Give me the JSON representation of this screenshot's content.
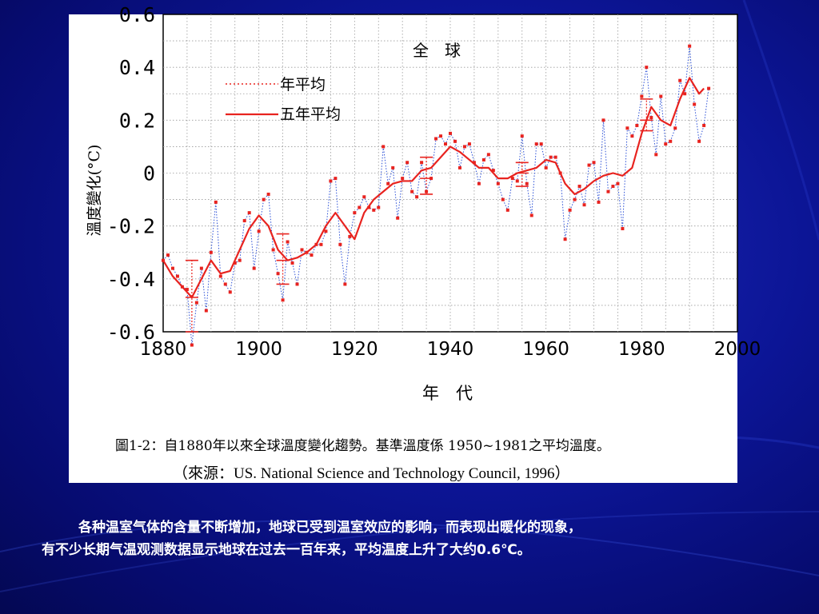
{
  "caption": "圖1-2：自1880年以來全球溫度變化趨勢。基準溫度係 1950~1981之平均溫度。",
  "source": "（來源：US. National Science and Technology Council, 1996）",
  "body_text": {
    "line1": "各种温室气体的含量不断增加，地球已受到温室效应的影响，而表现出暖化的现象，",
    "line2": "有不少长期气温观测数据显示地球在过去一百年来，平均温度上升了大约0.6℃。"
  },
  "colors": {
    "background": "#0c1596",
    "series": "#e8231f",
    "dotted_line": "#2a4fd6"
  },
  "chart_data": {
    "type": "line",
    "title": "全　球",
    "xlabel": "年　代",
    "ylabel": "溫度變化(°C)",
    "xlim": [
      1880,
      2000
    ],
    "ylim": [
      -0.6,
      0.6
    ],
    "x_ticks": [
      "1880",
      "1900",
      "1920",
      "1940",
      "1960",
      "1980",
      "2000"
    ],
    "y_ticks": [
      "0.6",
      "0.4",
      "0.2",
      "0",
      "-0.2",
      "-0.4",
      "-0.6"
    ],
    "grid": true,
    "legend_position": "top-left",
    "series": [
      {
        "name": "年平均",
        "style": "dotted",
        "x": [
          1880,
          1881,
          1882,
          1883,
          1884,
          1885,
          1886,
          1887,
          1888,
          1889,
          1890,
          1891,
          1892,
          1893,
          1894,
          1895,
          1896,
          1897,
          1898,
          1899,
          1900,
          1901,
          1902,
          1903,
          1904,
          1905,
          1906,
          1907,
          1908,
          1909,
          1910,
          1911,
          1912,
          1913,
          1914,
          1915,
          1916,
          1917,
          1918,
          1919,
          1920,
          1921,
          1922,
          1923,
          1924,
          1925,
          1926,
          1927,
          1928,
          1929,
          1930,
          1931,
          1932,
          1933,
          1934,
          1935,
          1936,
          1937,
          1938,
          1939,
          1940,
          1941,
          1942,
          1943,
          1944,
          1945,
          1946,
          1947,
          1948,
          1949,
          1950,
          1951,
          1952,
          1953,
          1954,
          1955,
          1956,
          1957,
          1958,
          1959,
          1960,
          1961,
          1962,
          1963,
          1964,
          1965,
          1966,
          1967,
          1968,
          1969,
          1970,
          1971,
          1972,
          1973,
          1974,
          1975,
          1976,
          1977,
          1978,
          1979,
          1980,
          1981,
          1982,
          1983,
          1984,
          1985,
          1986,
          1987,
          1988,
          1989,
          1990,
          1991,
          1992,
          1993,
          1994
        ],
        "values": [
          -0.33,
          -0.31,
          -0.36,
          -0.39,
          -0.43,
          -0.44,
          -0.65,
          -0.49,
          -0.36,
          -0.52,
          -0.3,
          -0.11,
          -0.39,
          -0.42,
          -0.45,
          -0.34,
          -0.33,
          -0.18,
          -0.15,
          -0.36,
          -0.22,
          -0.1,
          -0.08,
          -0.29,
          -0.38,
          -0.48,
          -0.26,
          -0.34,
          -0.42,
          -0.29,
          -0.3,
          -0.31,
          -0.27,
          -0.27,
          -0.22,
          -0.03,
          -0.02,
          -0.27,
          -0.42,
          -0.24,
          -0.15,
          -0.13,
          -0.09,
          -0.13,
          -0.14,
          -0.13,
          0.1,
          -0.04,
          0.02,
          -0.17,
          -0.02,
          0.04,
          -0.07,
          -0.09,
          0.04,
          -0.07,
          -0.02,
          0.13,
          0.14,
          0.11,
          0.15,
          0.12,
          0.02,
          0.1,
          0.11,
          0.04,
          -0.04,
          0.05,
          0.07,
          0.01,
          -0.04,
          -0.1,
          -0.14,
          -0.02,
          -0.03,
          0.14,
          -0.04,
          -0.16,
          0.11,
          0.11,
          0.02,
          0.06,
          0.06,
          0.0,
          -0.25,
          -0.14,
          -0.1,
          -0.05,
          -0.12,
          0.03,
          0.04,
          -0.11,
          0.2,
          -0.07,
          -0.05,
          -0.04,
          -0.21,
          0.17,
          0.14,
          0.18,
          0.29,
          0.4,
          0.21,
          0.07,
          0.29,
          0.11,
          0.12,
          0.17,
          0.35,
          0.3,
          0.48,
          0.26,
          0.12,
          0.18,
          0.32
        ]
      },
      {
        "name": "五年平均",
        "style": "solid",
        "x": [
          1880,
          1882,
          1884,
          1886,
          1888,
          1890,
          1892,
          1894,
          1896,
          1898,
          1900,
          1902,
          1904,
          1906,
          1908,
          1910,
          1912,
          1914,
          1916,
          1918,
          1920,
          1922,
          1924,
          1926,
          1928,
          1930,
          1932,
          1934,
          1936,
          1938,
          1940,
          1942,
          1944,
          1946,
          1948,
          1950,
          1952,
          1954,
          1956,
          1958,
          1960,
          1962,
          1964,
          1966,
          1968,
          1970,
          1972,
          1974,
          1976,
          1978,
          1980,
          1982,
          1984,
          1986,
          1988,
          1990,
          1992,
          1993
        ],
        "values": [
          -0.33,
          -0.39,
          -0.43,
          -0.47,
          -0.4,
          -0.33,
          -0.38,
          -0.37,
          -0.29,
          -0.21,
          -0.16,
          -0.2,
          -0.29,
          -0.33,
          -0.32,
          -0.3,
          -0.27,
          -0.2,
          -0.15,
          -0.2,
          -0.25,
          -0.15,
          -0.1,
          -0.07,
          -0.04,
          -0.03,
          -0.03,
          0.01,
          0.02,
          0.06,
          0.1,
          0.08,
          0.05,
          0.02,
          0.02,
          -0.02,
          -0.02,
          0.0,
          0.01,
          0.02,
          0.05,
          0.04,
          -0.04,
          -0.08,
          -0.06,
          -0.03,
          -0.01,
          0.0,
          -0.01,
          0.02,
          0.15,
          0.25,
          0.2,
          0.18,
          0.28,
          0.36,
          0.3,
          0.32
        ]
      }
    ],
    "error_bars": [
      {
        "x": 1886,
        "center": -0.47,
        "low": -0.6,
        "high": -0.33
      },
      {
        "x": 1905,
        "center": -0.33,
        "low": -0.42,
        "high": -0.23
      },
      {
        "x": 1935,
        "center": -0.02,
        "low": -0.08,
        "high": 0.06
      },
      {
        "x": 1955,
        "center": 0.0,
        "low": -0.05,
        "high": 0.04
      },
      {
        "x": 1981,
        "center": 0.2,
        "low": 0.16,
        "high": 0.28
      }
    ]
  }
}
